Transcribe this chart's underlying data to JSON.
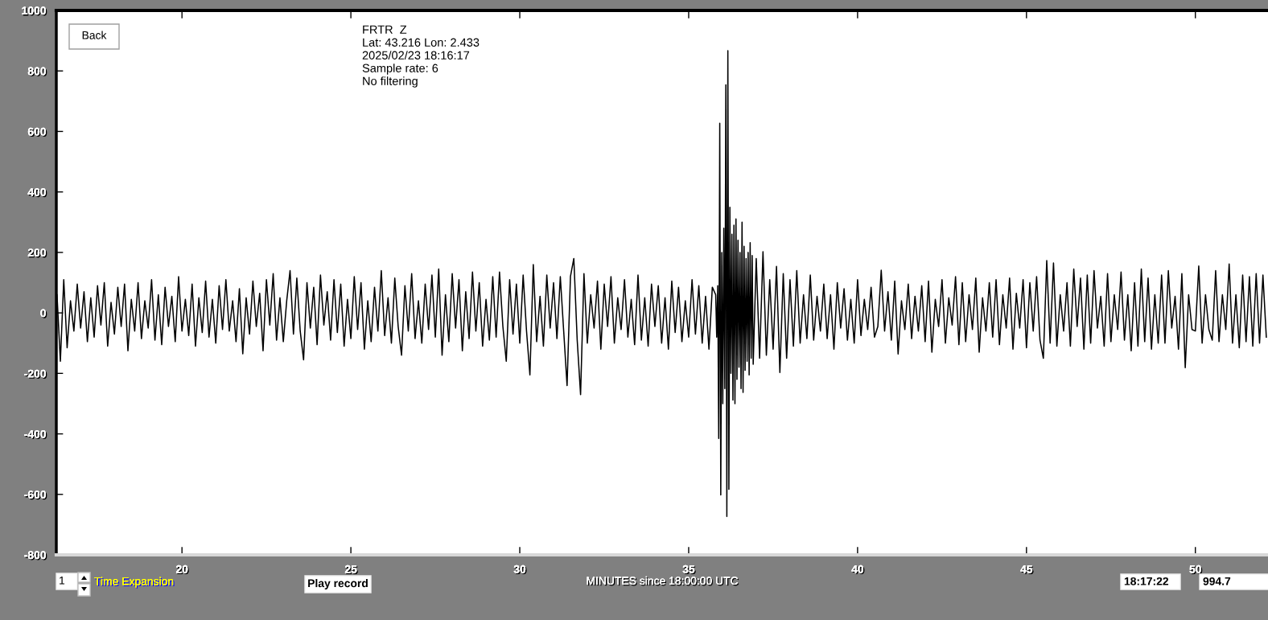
{
  "chart_data": {
    "type": "line",
    "xlabel": "MINUTES since 18:00:00 UTC",
    "annotations": [
      "FRTR  Z",
      "Lat: 43.216 Lon: 2.433",
      "2025/02/23 18:16:17",
      "Sample rate: 6",
      "No filtering",
      "Back",
      "1",
      "Time Expansion",
      "Play record",
      "18:17:22",
      "994.7"
    ],
    "x": [
      16.3,
      16.4,
      16.5,
      16.6,
      16.7,
      16.8,
      16.9,
      17,
      17.1,
      17.2,
      17.3,
      17.4,
      17.5,
      17.6,
      17.7,
      17.8,
      17.9,
      18,
      18.1,
      18.2,
      18.3,
      18.4,
      18.5,
      18.6,
      18.7,
      18.8,
      18.9,
      19,
      19.1,
      19.2,
      19.3,
      19.4,
      19.5,
      19.6,
      19.7,
      19.8,
      19.9,
      20,
      20.1,
      20.2,
      20.3,
      20.4,
      20.5,
      20.6,
      20.7,
      20.8,
      20.9,
      21,
      21.1,
      21.2,
      21.3,
      21.4,
      21.5,
      21.6,
      21.7,
      21.8,
      21.9,
      22,
      22.1,
      22.2,
      22.3,
      22.4,
      22.5,
      22.6,
      22.7,
      22.8,
      22.9,
      23,
      23.1,
      23.2,
      23.3,
      23.4,
      23.5,
      23.6,
      23.7,
      23.8,
      23.9,
      24,
      24.1,
      24.2,
      24.3,
      24.4,
      24.5,
      24.6,
      24.7,
      24.8,
      24.9,
      25,
      25.1,
      25.2,
      25.3,
      25.4,
      25.5,
      25.6,
      25.7,
      25.8,
      25.9,
      26,
      26.1,
      26.2,
      26.3,
      26.4,
      26.5,
      26.6,
      26.7,
      26.8,
      26.9,
      27,
      27.1,
      27.2,
      27.3,
      27.4,
      27.5,
      27.6,
      27.7,
      27.8,
      27.9,
      28,
      28.1,
      28.2,
      28.3,
      28.4,
      28.5,
      28.6,
      28.7,
      28.8,
      28.9,
      29,
      29.1,
      29.2,
      29.3,
      29.4,
      29.5,
      29.6,
      29.7,
      29.8,
      29.9,
      30,
      30.1,
      30.2,
      30.3,
      30.4,
      30.5,
      30.6,
      30.7,
      30.8,
      30.9,
      31,
      31.1,
      31.2,
      31.3,
      31.4,
      31.5,
      31.6,
      31.7,
      31.8,
      31.9,
      32,
      32.1,
      32.2,
      32.3,
      32.4,
      32.5,
      32.6,
      32.7,
      32.8,
      32.9,
      33,
      33.1,
      33.2,
      33.3,
      33.4,
      33.5,
      33.6,
      33.7,
      33.8,
      33.9,
      34,
      34.1,
      34.2,
      34.3,
      34.4,
      34.5,
      34.6,
      34.7,
      34.8,
      34.9,
      35,
      35.1,
      35.2,
      35.3,
      35.4,
      35.5,
      35.6,
      35.7,
      35.8,
      35.83,
      35.86,
      35.89,
      35.92,
      35.95,
      35.98,
      36.01,
      36.04,
      36.07,
      36.1,
      36.13,
      36.16,
      36.19,
      36.22,
      36.25,
      36.28,
      36.31,
      36.34,
      36.37,
      36.4,
      36.43,
      36.46,
      36.49,
      36.52,
      36.55,
      36.58,
      36.61,
      36.64,
      36.67,
      36.7,
      36.73,
      36.76,
      36.79,
      36.82,
      36.85,
      36.88,
      36.91,
      37,
      37.1,
      37.2,
      37.3,
      37.4,
      37.5,
      37.6,
      37.7,
      37.8,
      37.9,
      38,
      38.1,
      38.2,
      38.3,
      38.4,
      38.5,
      38.6,
      38.7,
      38.8,
      38.9,
      39,
      39.1,
      39.2,
      39.3,
      39.4,
      39.5,
      39.6,
      39.7,
      39.8,
      39.9,
      40,
      40.1,
      40.2,
      40.3,
      40.4,
      40.5,
      40.6,
      40.7,
      40.8,
      40.9,
      41,
      41.1,
      41.2,
      41.3,
      41.4,
      41.5,
      41.6,
      41.7,
      41.8,
      41.9,
      42,
      42.1,
      42.2,
      42.3,
      42.4,
      42.5,
      42.6,
      42.7,
      42.8,
      42.9,
      43,
      43.1,
      43.2,
      43.3,
      43.4,
      43.5,
      43.6,
      43.7,
      43.8,
      43.9,
      44,
      44.1,
      44.2,
      44.3,
      44.4,
      44.5,
      44.6,
      44.7,
      44.8,
      44.9,
      45,
      45.1,
      45.2,
      45.3,
      45.4,
      45.5,
      45.6,
      45.7,
      45.8,
      45.9,
      46,
      46.1,
      46.2,
      46.3,
      46.4,
      46.5,
      46.6,
      46.7,
      46.8,
      46.9,
      47,
      47.1,
      47.2,
      47.3,
      47.4,
      47.5,
      47.6,
      47.7,
      47.8,
      47.9,
      48,
      48.1,
      48.2,
      48.3,
      48.4,
      48.5,
      48.6,
      48.7,
      48.8,
      48.9,
      49,
      49.1,
      49.2,
      49.3,
      49.4,
      49.5,
      49.6,
      49.7,
      49.8,
      49.9,
      50,
      50.1,
      50.2,
      50.3,
      50.4,
      50.5,
      50.6,
      50.7,
      50.8,
      50.9,
      51,
      51.1,
      51.2,
      51.3,
      51.4,
      51.5,
      51.6,
      51.7,
      51.8,
      51.9,
      52,
      52.1
    ],
    "series": [
      {
        "color": "#000000",
        "values": [
          60,
          -160,
          110,
          -115,
          40,
          -60,
          95,
          -50,
          70,
          -95,
          50,
          -80,
          90,
          -40,
          100,
          -110,
          35,
          -70,
          85,
          -45,
          95,
          -125,
          45,
          -60,
          100,
          -85,
          40,
          -50,
          110,
          -90,
          60,
          -105,
          85,
          -45,
          55,
          -95,
          120,
          -60,
          45,
          -75,
          95,
          -110,
          50,
          -65,
          105,
          -80,
          45,
          -100,
          90,
          -55,
          110,
          -60,
          40,
          -95,
          80,
          -135,
          50,
          -70,
          105,
          -45,
          65,
          -125,
          110,
          -40,
          130,
          -90,
          50,
          -95,
          40,
          140,
          -70,
          115,
          -60,
          -155,
          100,
          -50,
          85,
          -105,
          125,
          -40,
          70,
          -90,
          110,
          -65,
          95,
          -110,
          45,
          -85,
          120,
          -55,
          100,
          -120,
          40,
          -95,
          85,
          -60,
          140,
          -75,
          50,
          -100,
          115,
          -45,
          -140,
          90,
          -60,
          130,
          -85,
          40,
          -100,
          95,
          -55,
          125,
          -80,
          145,
          -140,
          60,
          -95,
          130,
          -50,
          110,
          -125,
          70,
          -85,
          135,
          -60,
          100,
          -110,
          45,
          -90,
          120,
          -80,
          135,
          -45,
          -160,
          110,
          -70,
          95,
          -100,
          125,
          -60,
          -205,
          160,
          -95,
          55,
          -110,
          125,
          -50,
          100,
          -85,
          120,
          -60,
          -240,
          120,
          180,
          -90,
          -270,
          130,
          -100,
          60,
          -50,
          105,
          -120,
          95,
          -45,
          120,
          -100,
          50,
          -55,
          110,
          -80,
          45,
          -105,
          125,
          -90,
          50,
          -110,
          95,
          -45,
          90,
          -100,
          50,
          -120,
          105,
          -65,
          85,
          -95,
          40,
          -80,
          110,
          -70,
          90,
          -100,
          55,
          -120,
          85,
          60,
          -80,
          90,
          -415,
          627,
          -602,
          200,
          -300,
          280,
          -250,
          754,
          -673,
          867,
          -583,
          349,
          -200,
          260,
          -288,
          290,
          -300,
          311,
          -220,
          240,
          -180,
          200,
          -250,
          300,
          -263,
          220,
          -190,
          180,
          -160,
          200,
          -205,
          232,
          -150,
          190,
          -170,
          180,
          -150,
          202,
          -140,
          110,
          -120,
          154,
          -197,
          130,
          -150,
          110,
          -110,
          140,
          -100,
          60,
          -85,
          125,
          -90,
          55,
          -60,
          95,
          -85,
          60,
          -120,
          100,
          -50,
          80,
          -90,
          45,
          -100,
          110,
          -75,
          45,
          -55,
          85,
          -80,
          -45,
          141,
          -60,
          70,
          -90,
          105,
          -136,
          40,
          -55,
          95,
          -85,
          55,
          -60,
          90,
          -95,
          105,
          -130,
          45,
          -45,
          110,
          -100,
          50,
          -40,
          120,
          -105,
          100,
          -95,
          60,
          -55,
          115,
          -130,
          50,
          -60,
          100,
          -80,
          110,
          -105,
          60,
          -50,
          115,
          -120,
          65,
          -50,
          110,
          -115,
          100,
          -60,
          120,
          -90,
          -150,
          173,
          -100,
          165,
          -110,
          60,
          -60,
          100,
          -110,
          145,
          -45,
          115,
          -120,
          125,
          -100,
          140,
          -50,
          55,
          -110,
          130,
          -95,
          60,
          -55,
          135,
          -90,
          60,
          -125,
          100,
          -110,
          145,
          -95,
          115,
          -120,
          60,
          -100,
          125,
          -100,
          140,
          -50,
          55,
          -120,
          130,
          -181,
          60,
          -55,
          -60,
          155,
          -100,
          60,
          -55,
          -90,
          140,
          -95,
          60,
          -55,
          162,
          -100,
          60,
          -115,
          125,
          -95,
          120,
          -110,
          130,
          -100,
          125,
          -80
        ]
      }
    ],
    "xlim": [
      16.28,
      52.15
    ],
    "ylim": [
      -800,
      1000
    ],
    "xticks": [
      20,
      25,
      30,
      35,
      40,
      45,
      50
    ],
    "yticks": [
      -800,
      -600,
      -400,
      -200,
      0,
      200,
      400,
      600,
      800,
      1000
    ],
    "grid": false,
    "line_style": "solid"
  }
}
